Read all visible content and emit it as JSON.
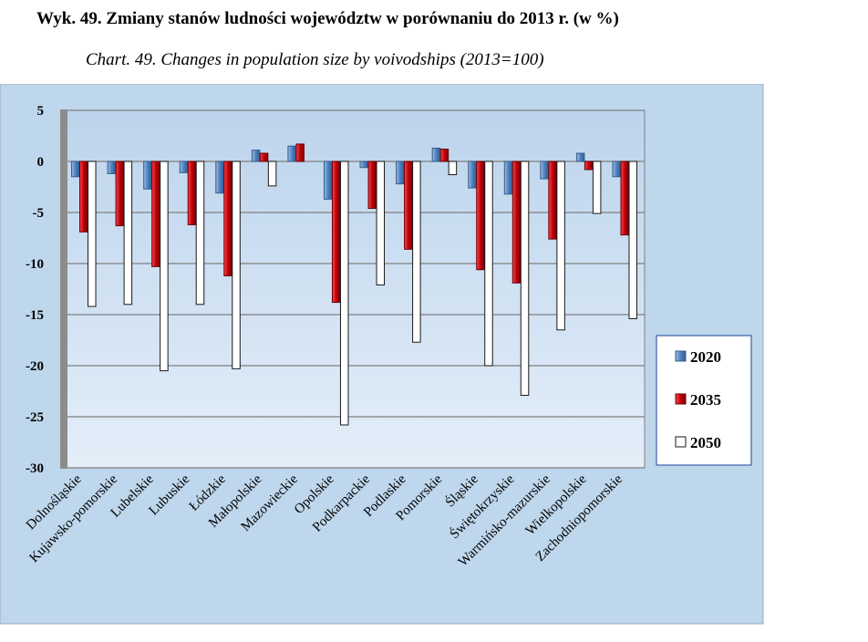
{
  "title": "Wyk.  49. Zmiany stanów ludności województw w porównaniu do 2013 r. (w %)",
  "subtitle": "Chart. 49. Changes in population size by voivodships (2013=100)",
  "chart_data": {
    "type": "bar",
    "categories": [
      "Dolnośląskie",
      "Kujawsko-pomorskie",
      "Lubelskie",
      "Lubuskie",
      "Łódzkie",
      "Małopolskie",
      "Mazowieckie",
      "Opolskie",
      "Podkarpackie",
      "Podlaskie",
      "Pomorskie",
      "Śląskie",
      "Świętokrzyskie",
      "Warmińsko-mazurskie",
      "Wielkopolskie",
      "Zachodniopomorskie"
    ],
    "series": [
      {
        "name": "2020",
        "color": "#4f81bd",
        "values": [
          -1.5,
          -1.2,
          -2.7,
          -1.1,
          -3.1,
          1.1,
          1.5,
          -3.7,
          -0.6,
          -2.2,
          1.3,
          -2.6,
          -3.2,
          -1.7,
          0.8,
          -1.5
        ]
      },
      {
        "name": "2035",
        "color": "#c0000b",
        "values": [
          -6.9,
          -6.3,
          -10.3,
          -6.2,
          -11.2,
          0.8,
          1.7,
          -13.8,
          -4.6,
          -8.6,
          1.2,
          -10.6,
          -11.9,
          -7.6,
          -0.8,
          -7.2
        ]
      },
      {
        "name": "2050",
        "color": "#ffffff",
        "values": [
          -14.2,
          -14.0,
          -20.5,
          -14.0,
          -20.3,
          -2.4,
          0.0,
          -25.8,
          -12.1,
          -17.7,
          -1.3,
          -20.0,
          -22.9,
          -16.5,
          -5.1,
          -15.4
        ]
      }
    ],
    "ylim": [
      -30,
      5
    ],
    "yticks": [
      "5",
      "0",
      "-5",
      "-10",
      "-15",
      "-20",
      "-25",
      "-30"
    ],
    "grid": true,
    "legend_position": "right"
  }
}
